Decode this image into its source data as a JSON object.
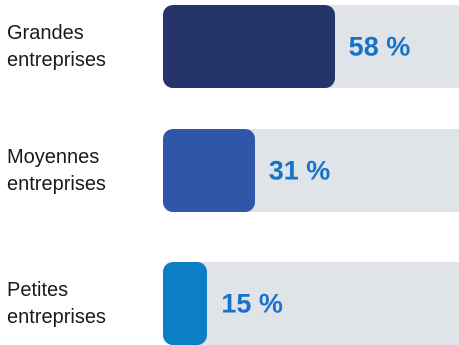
{
  "chart_data": {
    "type": "bar",
    "orientation": "horizontal",
    "categories": [
      "Grandes entreprises",
      "Moyennes entreprises",
      "Petites entreprises"
    ],
    "label_lines": [
      [
        "Grandes",
        "entreprises"
      ],
      [
        "Moyennes",
        "entreprises"
      ],
      [
        "Petites",
        "entreprises"
      ]
    ],
    "values": [
      58,
      31,
      15
    ],
    "value_labels": [
      "58 %",
      "31 %",
      "15 %"
    ],
    "xlim": [
      0,
      100
    ],
    "bar_colors": [
      "#25356b",
      "#2f56a8",
      "#0b7fc6"
    ],
    "track_color": "#e0e3e7",
    "value_label_color": "#1673c8",
    "grid": false,
    "legend": "none"
  }
}
